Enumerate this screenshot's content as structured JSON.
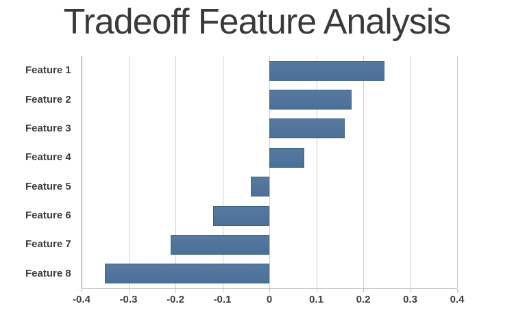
{
  "title": "Tradeoff Feature Analysis",
  "colors": {
    "bar": "#4e749b",
    "bar_border": "#3f678f",
    "grid": "#cfcfcf",
    "axis": "#7e7e7e",
    "text": "#3d3d3d",
    "title_text": "#3a3a3a",
    "background": "#ffffff"
  },
  "chart_data": {
    "type": "bar",
    "orientation": "horizontal",
    "title": "Tradeoff Feature Analysis",
    "categories": [
      "Feature 1",
      "Feature 2",
      "Feature 3",
      "Feature 4",
      "Feature 5",
      "Feature 6",
      "Feature 7",
      "Feature 8"
    ],
    "values": [
      0.245,
      0.175,
      0.16,
      0.075,
      -0.04,
      -0.12,
      -0.21,
      -0.35
    ],
    "xlim": [
      -0.4,
      0.4
    ],
    "xticks": [
      -0.4,
      -0.3,
      -0.2,
      -0.1,
      0,
      0.1,
      0.2,
      0.3,
      0.4
    ],
    "xtick_labels": [
      "-0.4",
      "-0.3",
      "-0.2",
      "-0.1",
      "0",
      "0.1",
      "0.2",
      "0.3",
      "0.4"
    ],
    "xlabel": "",
    "ylabel": "",
    "grid": true,
    "legend": false,
    "bar_color": "#4e749b"
  }
}
